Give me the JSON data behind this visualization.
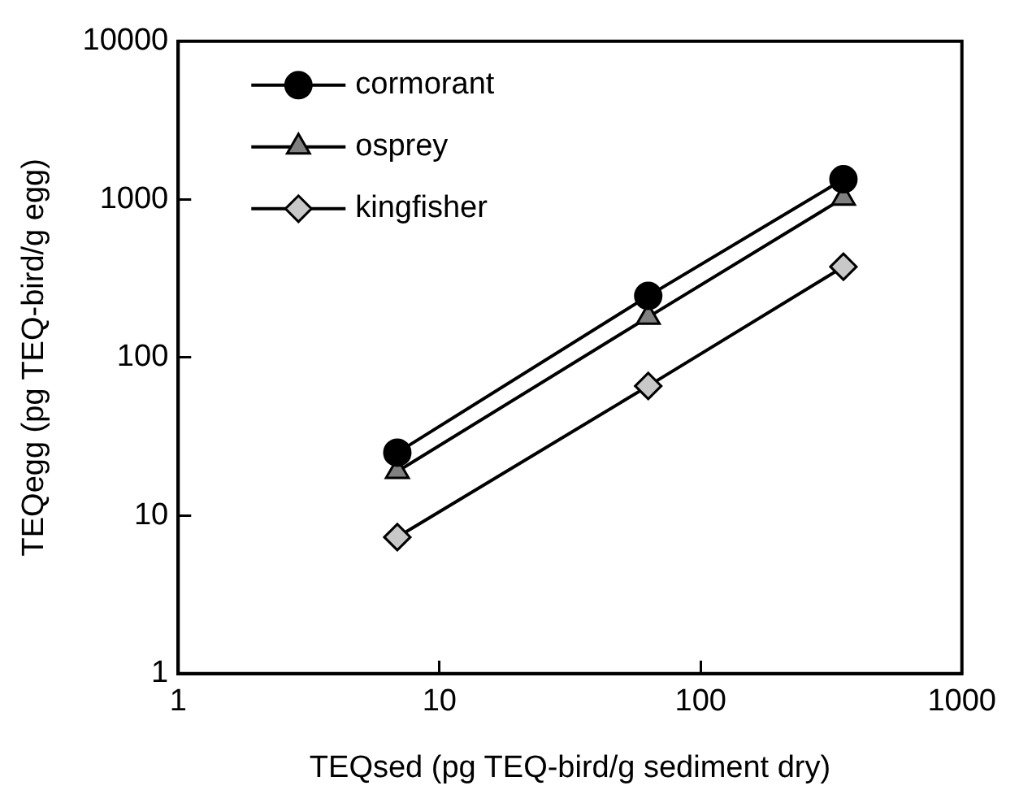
{
  "chart_data": {
    "type": "line",
    "xlabel": "TEQsed (pg TEQ-bird/g sediment dry)",
    "ylabel": "TEQegg (pg TEQ-bird/g egg)",
    "log": "xy",
    "xlim": [
      1,
      1000
    ],
    "xticks": [
      1,
      10,
      100,
      1000
    ],
    "ylim": [
      1,
      10000
    ],
    "yticks": [
      1,
      10,
      100,
      1000,
      10000
    ],
    "grid": false,
    "legend": "top left",
    "series": [
      {
        "name": "cormorant",
        "color": "#000000",
        "marker": "circle",
        "x": [
          6.9,
          63,
          352
        ],
        "values": [
          25,
          245,
          1340
        ]
      },
      {
        "name": "osprey",
        "color": "#808080",
        "marker": "triangle",
        "x": [
          6.9,
          63,
          352
        ],
        "values": [
          19,
          180,
          1020
        ]
      },
      {
        "name": "kingfisher",
        "color": "#c8c8c8",
        "marker": "diamond",
        "x": [
          6.9,
          63,
          352
        ],
        "values": [
          7.3,
          66,
          375
        ]
      }
    ]
  }
}
